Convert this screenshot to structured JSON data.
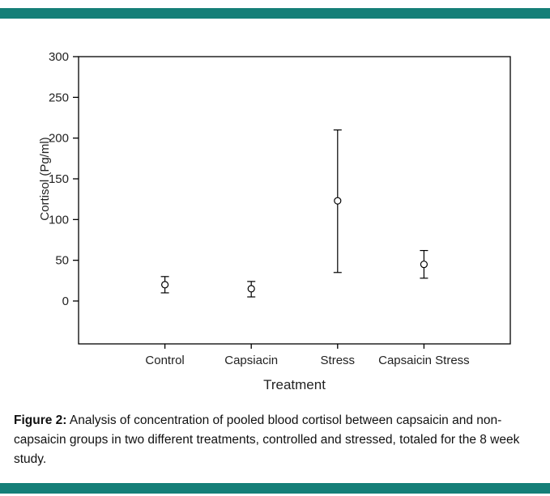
{
  "page": {
    "background": "#ffffff",
    "accent_bar_color": "#157f78"
  },
  "caption": {
    "label": "Figure 2:",
    "text": "Analysis of concentration of pooled blood cortisol between capsaicin and non-capsaicin groups in two different treatments, controlled and stressed, totaled for the 8 week study."
  },
  "chart_data": {
    "type": "scatter",
    "marker": "open-circle",
    "title": "",
    "xlabel": "Treatment",
    "ylabel": "Cortisol (Pg/ml)",
    "ylim": [
      0,
      300
    ],
    "yticks": [
      0,
      50,
      100,
      150,
      200,
      250,
      300
    ],
    "grid": false,
    "legend": false,
    "categories": [
      "Control",
      "Capsiacin",
      "Stress",
      "Capsaicin Stress"
    ],
    "points": [
      {
        "category": "Control",
        "value": 20,
        "error_low": 10,
        "error_high": 30
      },
      {
        "category": "Capsiacin",
        "value": 15,
        "error_low": 5,
        "error_high": 24
      },
      {
        "category": "Stress",
        "value": 123,
        "error_low": 35,
        "error_high": 210
      },
      {
        "category": "Capsaicin Stress",
        "value": 45,
        "error_low": 28,
        "error_high": 62
      }
    ]
  }
}
